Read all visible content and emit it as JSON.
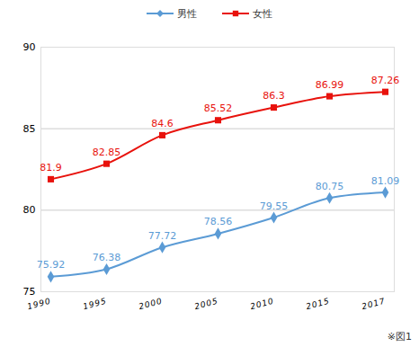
{
  "chart_data": {
    "type": "line",
    "categories": [
      "1990",
      "1995",
      "2000",
      "2005",
      "2010",
      "2015",
      "2017"
    ],
    "series": [
      {
        "name": "男性",
        "color": "#5b9bd5",
        "marker": "diamond",
        "values": [
          75.92,
          76.38,
          77.72,
          78.56,
          79.55,
          80.75,
          81.09
        ]
      },
      {
        "name": "女性",
        "color": "#e8120c",
        "marker": "square",
        "values": [
          81.9,
          82.85,
          84.6,
          85.52,
          86.3,
          86.99,
          87.26
        ]
      }
    ],
    "ylim": [
      75,
      90
    ],
    "yticks": [
      75,
      80,
      85,
      90
    ],
    "grid": true,
    "legend": "top",
    "data_labels": true,
    "caption": "※図1"
  }
}
